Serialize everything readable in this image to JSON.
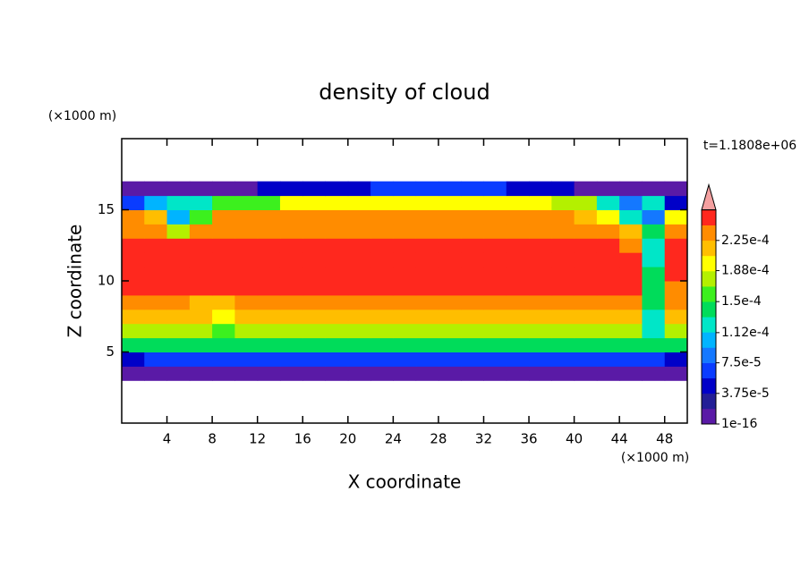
{
  "chart_data": {
    "type": "contour",
    "title": "density of cloud",
    "xlabel": "X coordinate",
    "ylabel": "Z coordinate",
    "xunit": "(×1000 m)",
    "yunit": "(×1000 m)",
    "annotation": "t=1.1808e+06",
    "xlim": [
      0,
      50
    ],
    "ylim": [
      0,
      20
    ],
    "xticks": [
      4,
      8,
      12,
      16,
      20,
      24,
      28,
      32,
      36,
      40,
      44,
      48
    ],
    "yticks": [
      5,
      10,
      15
    ],
    "x": [
      1,
      3,
      5,
      7,
      9,
      11,
      13,
      15,
      17,
      19,
      21,
      23,
      25,
      27,
      29,
      31,
      33,
      35,
      37,
      39,
      41,
      43,
      45,
      47,
      49
    ],
    "z": [
      3.5,
      4.5,
      5.5,
      6.5,
      7.5,
      8.5,
      9.5,
      10.5,
      11.5,
      12.5,
      13.5,
      14.5,
      15.5,
      16.5
    ],
    "values": [
      [
        1e-05,
        1e-05,
        1e-05,
        1e-05,
        1e-05,
        1e-05,
        1e-05,
        1e-05,
        1e-05,
        1e-05,
        1e-05,
        1e-05,
        1e-05,
        1e-05,
        1e-05,
        1e-05,
        1e-05,
        1e-05,
        1e-05,
        1e-05,
        1e-05,
        1e-05,
        1e-05,
        1e-05,
        1e-05
      ],
      [
        5e-05,
        7e-05,
        7e-05,
        7e-05,
        7e-05,
        7e-05,
        7e-05,
        7e-05,
        7e-05,
        7e-05,
        7e-05,
        7e-05,
        7e-05,
        7e-05,
        7e-05,
        7e-05,
        7e-05,
        7e-05,
        7e-05,
        7e-05,
        7e-05,
        7e-05,
        7e-05,
        7e-05,
        5e-05
      ],
      [
        0.000135,
        0.000135,
        0.000135,
        0.000135,
        0.000135,
        0.000135,
        0.000135,
        0.000135,
        0.000135,
        0.000135,
        0.000135,
        0.000135,
        0.000135,
        0.000135,
        0.000135,
        0.000135,
        0.000135,
        0.000135,
        0.000135,
        0.000135,
        0.000135,
        0.000135,
        0.000135,
        0.000135,
        0.000135
      ],
      [
        0.00018,
        0.00018,
        0.00018,
        0.00018,
        0.00016,
        0.00018,
        0.00018,
        0.00018,
        0.00018,
        0.00018,
        0.00018,
        0.00018,
        0.00018,
        0.00018,
        0.00018,
        0.00018,
        0.00018,
        0.00018,
        0.00018,
        0.00018,
        0.00018,
        0.00018,
        0.00018,
        0.00012,
        0.00018
      ],
      [
        0.00021,
        0.00021,
        0.00021,
        0.00021,
        0.0002,
        0.00021,
        0.00021,
        0.00021,
        0.00021,
        0.00021,
        0.00021,
        0.00021,
        0.00021,
        0.00021,
        0.00021,
        0.00021,
        0.00021,
        0.00021,
        0.00021,
        0.00021,
        0.00021,
        0.00021,
        0.00021,
        0.00013,
        0.00021
      ],
      [
        0.00023,
        0.00023,
        0.00023,
        0.00022,
        0.00021,
        0.00023,
        0.00023,
        0.00023,
        0.00023,
        0.00023,
        0.00023,
        0.00023,
        0.00023,
        0.00023,
        0.00023,
        0.00023,
        0.00023,
        0.00023,
        0.00023,
        0.00023,
        0.00023,
        0.00023,
        0.00023,
        0.00014,
        0.00023
      ],
      [
        0.00025,
        0.00025,
        0.000245,
        0.000245,
        0.000245,
        0.000245,
        0.000245,
        0.000245,
        0.000245,
        0.000245,
        0.000245,
        0.000245,
        0.000245,
        0.000245,
        0.000245,
        0.000245,
        0.000245,
        0.000245,
        0.000245,
        0.000245,
        0.000245,
        0.000245,
        0.000245,
        0.00015,
        0.00023
      ],
      [
        0.00025,
        0.00025,
        0.000245,
        0.000245,
        0.000245,
        0.000245,
        0.000245,
        0.000245,
        0.000245,
        0.000245,
        0.000245,
        0.000245,
        0.000245,
        0.000245,
        0.000245,
        0.000245,
        0.000245,
        0.000245,
        0.000245,
        0.000245,
        0.000245,
        0.000245,
        0.000245,
        0.00014,
        0.000245
      ],
      [
        0.00025,
        0.00025,
        0.000245,
        0.000245,
        0.000245,
        0.000245,
        0.000245,
        0.000245,
        0.000245,
        0.000245,
        0.000245,
        0.000245,
        0.000245,
        0.000245,
        0.000245,
        0.000245,
        0.000245,
        0.000245,
        0.000245,
        0.000245,
        0.000245,
        0.000245,
        0.000245,
        0.00013,
        0.000245
      ],
      [
        0.00025,
        0.00025,
        0.000245,
        0.000245,
        0.000245,
        0.000245,
        0.000245,
        0.000245,
        0.000245,
        0.000245,
        0.000245,
        0.000245,
        0.000245,
        0.000245,
        0.000245,
        0.000245,
        0.000245,
        0.000245,
        0.000245,
        0.000245,
        0.000245,
        0.000245,
        0.00023,
        0.00012,
        0.000245
      ],
      [
        0.00024,
        0.00024,
        0.00018,
        0.00024,
        0.00024,
        0.00024,
        0.00024,
        0.00024,
        0.00024,
        0.00024,
        0.00024,
        0.00024,
        0.00024,
        0.00024,
        0.00024,
        0.00024,
        0.00024,
        0.00024,
        0.00024,
        0.00024,
        0.00024,
        0.00024,
        0.00022,
        0.00015,
        0.00024
      ],
      [
        0.00023,
        0.00022,
        0.00011,
        0.00016,
        0.00023,
        0.00023,
        0.00023,
        0.00023,
        0.00023,
        0.00023,
        0.00023,
        0.00023,
        0.00023,
        0.00023,
        0.00023,
        0.00023,
        0.00023,
        0.00023,
        0.00023,
        0.00023,
        0.00022,
        0.00019,
        0.00012,
        9e-05,
        0.0002
      ],
      [
        6e-05,
        0.0001,
        0.00012,
        0.00013,
        0.00016,
        0.00016,
        0.00016,
        0.0002,
        0.0002,
        0.0002,
        0.0002,
        0.0002,
        0.0002,
        0.0002,
        0.0002,
        0.0002,
        0.0002,
        0.0002,
        0.0002,
        0.00017,
        0.00017,
        0.00012,
        8e-05,
        0.00012,
        4e-05
      ],
      [
        1e-05,
        1e-05,
        1e-05,
        1e-05,
        1e-05,
        1e-05,
        4e-05,
        4e-05,
        4e-05,
        4e-05,
        4e-05,
        6e-05,
        6e-05,
        6e-05,
        6e-05,
        6e-05,
        6e-05,
        4e-05,
        4e-05,
        4e-05,
        1e-05,
        1e-05,
        1e-05,
        1e-05,
        1e-05
      ]
    ],
    "clim": [
      1e-16,
      0.0002625
    ],
    "colors": [
      "#5a1aa6",
      "#231e96",
      "#0000c8",
      "#0a3cff",
      "#1478ff",
      "#00b4ff",
      "#00e6c8",
      "#00dc5a",
      "#3cf01e",
      "#b4f000",
      "#ffff00",
      "#ffbe00",
      "#ff8c00",
      "#ff281e"
    ],
    "extend_color": "#f4a0a0",
    "cticks": [
      {
        "value": 1e-16,
        "label": "1e-16"
      },
      {
        "value": 3.75e-05,
        "label": "3.75e-5"
      },
      {
        "value": 7.5e-05,
        "label": "7.5e-5"
      },
      {
        "value": 0.000112,
        "label": "1.12e-4"
      },
      {
        "value": 0.00015,
        "label": "1.5e-4"
      },
      {
        "value": 0.000188,
        "label": "1.88e-4"
      },
      {
        "value": 0.000225,
        "label": "2.25e-4"
      }
    ]
  }
}
